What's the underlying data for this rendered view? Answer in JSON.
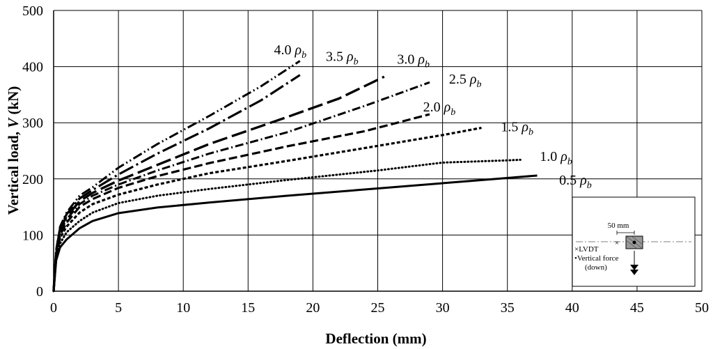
{
  "chart_data": {
    "type": "line",
    "title": "",
    "xlabel": "Deflection (mm)",
    "ylabel": "Vertical load, V (kN)",
    "ylabel_parts": {
      "prefix": "Vertical load, ",
      "var": "V",
      "suffix": " (kN)"
    },
    "xlim": [
      0,
      50
    ],
    "ylim": [
      0,
      500
    ],
    "xticks": [
      "0",
      "5",
      "10",
      "15",
      "20",
      "25",
      "30",
      "35",
      "40",
      "45",
      "50"
    ],
    "yticks": [
      "0",
      "100",
      "200",
      "300",
      "400",
      "500"
    ],
    "grid": true,
    "series": [
      {
        "name": "0.5 ρb",
        "coef": "0.5",
        "sym": "ρ",
        "sub": "b",
        "style": "solid",
        "points": [
          [
            0,
            0
          ],
          [
            0.2,
            55
          ],
          [
            0.5,
            78
          ],
          [
            1,
            92
          ],
          [
            2,
            112
          ],
          [
            3,
            125
          ],
          [
            5,
            139
          ],
          [
            8,
            149
          ],
          [
            12,
            158
          ],
          [
            18,
            170
          ],
          [
            25,
            183
          ],
          [
            32,
            196
          ],
          [
            37.3,
            206
          ]
        ]
      },
      {
        "name": "1.0 ρb",
        "coef": "1.0",
        "sym": "ρ",
        "sub": "b",
        "style": "dotted",
        "points": [
          [
            0,
            0
          ],
          [
            0.2,
            60
          ],
          [
            0.5,
            85
          ],
          [
            1,
            105
          ],
          [
            2,
            125
          ],
          [
            3,
            140
          ],
          [
            5,
            157
          ],
          [
            8,
            170
          ],
          [
            12,
            182
          ],
          [
            18,
            198
          ],
          [
            25,
            215
          ],
          [
            30,
            229
          ],
          [
            35,
            233
          ],
          [
            36,
            234
          ]
        ]
      },
      {
        "name": "1.5 ρb",
        "coef": "1.5",
        "sym": "ρ",
        "sub": "b",
        "style": "shortdash",
        "points": [
          [
            0,
            0
          ],
          [
            0.2,
            62
          ],
          [
            0.5,
            95
          ],
          [
            1,
            115
          ],
          [
            2,
            140
          ],
          [
            3,
            155
          ],
          [
            5,
            172
          ],
          [
            8,
            190
          ],
          [
            12,
            210
          ],
          [
            18,
            232
          ],
          [
            24,
            255
          ],
          [
            30,
            278
          ],
          [
            33,
            291
          ]
        ]
      },
      {
        "name": "2.0 ρb",
        "coef": "2.0",
        "sym": "ρ",
        "sub": "b",
        "style": "dash",
        "points": [
          [
            0,
            0
          ],
          [
            0.2,
            65
          ],
          [
            0.5,
            100
          ],
          [
            1,
            122
          ],
          [
            2,
            150
          ],
          [
            3,
            164
          ],
          [
            5,
            184
          ],
          [
            8,
            205
          ],
          [
            12,
            228
          ],
          [
            18,
            258
          ],
          [
            24,
            285
          ],
          [
            29,
            315
          ]
        ]
      },
      {
        "name": "2.5 ρb",
        "coef": "2.5",
        "sym": "ρ",
        "sub": "b",
        "style": "dashdot",
        "points": [
          [
            0,
            0
          ],
          [
            0.2,
            68
          ],
          [
            0.5,
            105
          ],
          [
            1,
            128
          ],
          [
            2,
            155
          ],
          [
            3,
            170
          ],
          [
            5,
            190
          ],
          [
            8,
            215
          ],
          [
            12,
            245
          ],
          [
            18,
            283
          ],
          [
            24,
            330
          ],
          [
            29,
            372
          ]
        ]
      },
      {
        "name": "3.0 ρb",
        "coef": "3.0",
        "sym": "ρ",
        "sub": "b",
        "style": "longdash",
        "points": [
          [
            0,
            0
          ],
          [
            0.2,
            70
          ],
          [
            0.5,
            110
          ],
          [
            1,
            133
          ],
          [
            2,
            160
          ],
          [
            3,
            175
          ],
          [
            5,
            197
          ],
          [
            8,
            225
          ],
          [
            12,
            262
          ],
          [
            18,
            310
          ],
          [
            22,
            343
          ],
          [
            25.5,
            382
          ]
        ]
      },
      {
        "name": "3.5 ρb",
        "coef": "3.5",
        "sym": "ρ",
        "sub": "b",
        "style": "longdashdot",
        "points": [
          [
            0,
            0
          ],
          [
            0.2,
            72
          ],
          [
            0.5,
            112
          ],
          [
            1,
            137
          ],
          [
            2,
            165
          ],
          [
            3,
            180
          ],
          [
            5,
            208
          ],
          [
            8,
            245
          ],
          [
            12,
            290
          ],
          [
            16,
            340
          ],
          [
            19,
            385
          ]
        ]
      },
      {
        "name": "4.0 ρb",
        "coef": "4.0",
        "sym": "ρ",
        "sub": "b",
        "style": "dashdotdot",
        "points": [
          [
            0,
            0
          ],
          [
            0.2,
            74
          ],
          [
            0.5,
            115
          ],
          [
            1,
            140
          ],
          [
            2,
            170
          ],
          [
            3,
            185
          ],
          [
            5,
            220
          ],
          [
            8,
            262
          ],
          [
            12,
            312
          ],
          [
            16,
            365
          ],
          [
            19,
            410
          ]
        ]
      }
    ],
    "inset": {
      "dimension_label": "50 mm",
      "legend_lvdt": "×LVDT",
      "legend_force_line1": "•Vertical force",
      "legend_force_line2": "(down)"
    }
  }
}
